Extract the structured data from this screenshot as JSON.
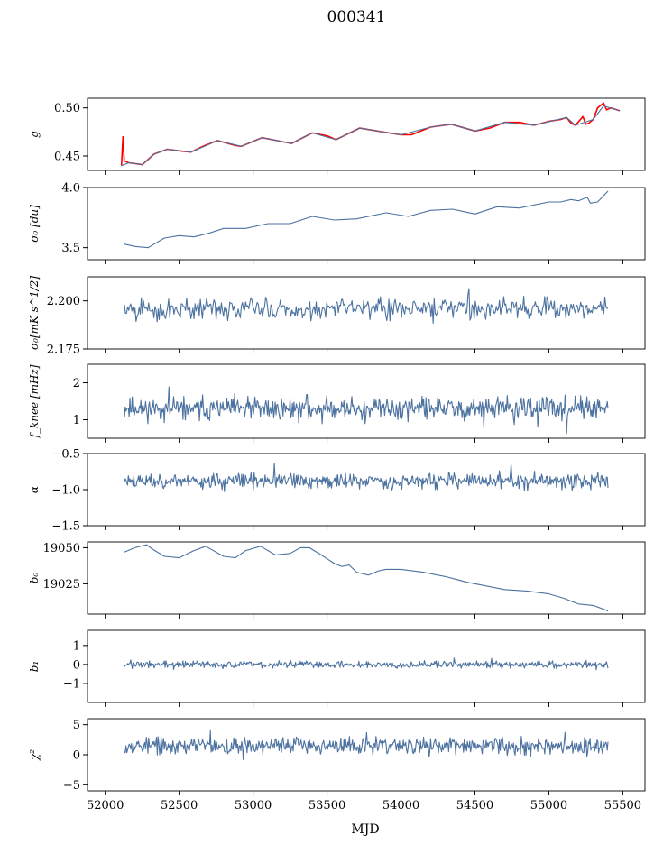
{
  "figure": {
    "title": "000341",
    "xlabel": "MJD"
  },
  "chart_data": [
    {
      "id": "g",
      "type": "line",
      "ylabel": "g",
      "xlim": [
        51880,
        55650
      ],
      "ylim": [
        0.435,
        0.51
      ],
      "yticks": [
        0.45,
        0.5
      ],
      "ytick_labels": [
        "0.45",
        "0.50"
      ],
      "series": [
        {
          "color": "#ff0000",
          "points": [
            [
              52110,
              0.44
            ],
            [
              52120,
              0.47
            ],
            [
              52128,
              0.445
            ],
            [
              52160,
              0.443
            ],
            [
              52250,
              0.441
            ],
            [
              52330,
              0.452
            ],
            [
              52420,
              0.457
            ],
            [
              52520,
              0.455
            ],
            [
              52580,
              0.454
            ],
            [
              52660,
              0.46
            ],
            [
              52760,
              0.466
            ],
            [
              52880,
              0.461
            ],
            [
              52920,
              0.46
            ],
            [
              53060,
              0.469
            ],
            [
              53160,
              0.466
            ],
            [
              53260,
              0.463
            ],
            [
              53400,
              0.474
            ],
            [
              53500,
              0.471
            ],
            [
              53560,
              0.467
            ],
            [
              53720,
              0.479
            ],
            [
              53840,
              0.476
            ],
            [
              54000,
              0.472
            ],
            [
              54070,
              0.472
            ],
            [
              54200,
              0.48
            ],
            [
              54340,
              0.483
            ],
            [
              54500,
              0.476
            ],
            [
              54600,
              0.479
            ],
            [
              54700,
              0.485
            ],
            [
              54800,
              0.485
            ],
            [
              54900,
              0.482
            ],
            [
              55000,
              0.486
            ],
            [
              55080,
              0.488
            ],
            [
              55120,
              0.49
            ],
            [
              55150,
              0.484
            ],
            [
              55180,
              0.482
            ],
            [
              55230,
              0.491
            ],
            [
              55250,
              0.483
            ],
            [
              55270,
              0.484
            ],
            [
              55300,
              0.488
            ],
            [
              55330,
              0.5
            ],
            [
              55370,
              0.505
            ],
            [
              55390,
              0.498
            ],
            [
              55420,
              0.5
            ],
            [
              55480,
              0.497
            ]
          ]
        },
        {
          "color": "#4c72a0",
          "points": [
            [
              52110,
              0.44
            ],
            [
              52160,
              0.443
            ],
            [
              52250,
              0.441
            ],
            [
              52330,
              0.452
            ],
            [
              52420,
              0.457
            ],
            [
              52580,
              0.454
            ],
            [
              52760,
              0.466
            ],
            [
              52920,
              0.46
            ],
            [
              53060,
              0.469
            ],
            [
              53260,
              0.463
            ],
            [
              53400,
              0.474
            ],
            [
              53560,
              0.467
            ],
            [
              53720,
              0.479
            ],
            [
              54000,
              0.472
            ],
            [
              54200,
              0.48
            ],
            [
              54340,
              0.483
            ],
            [
              54500,
              0.476
            ],
            [
              54700,
              0.485
            ],
            [
              54900,
              0.482
            ],
            [
              55120,
              0.49
            ],
            [
              55180,
              0.482
            ],
            [
              55300,
              0.488
            ],
            [
              55370,
              0.502
            ],
            [
              55480,
              0.497
            ]
          ]
        }
      ]
    },
    {
      "id": "sigma0",
      "type": "line",
      "ylabel": "σ₀ [du]",
      "xlim": [
        51880,
        55650
      ],
      "ylim": [
        3.4,
        4.0
      ],
      "yticks": [
        3.5,
        4.0
      ],
      "ytick_labels": [
        "3.5",
        "4.0"
      ],
      "series": [
        {
          "color": "#4c72a0",
          "points": [
            [
              52130,
              3.53
            ],
            [
              52200,
              3.51
            ],
            [
              52290,
              3.5
            ],
            [
              52400,
              3.58
            ],
            [
              52500,
              3.6
            ],
            [
              52600,
              3.59
            ],
            [
              52700,
              3.62
            ],
            [
              52800,
              3.66
            ],
            [
              52950,
              3.66
            ],
            [
              53100,
              3.7
            ],
            [
              53250,
              3.7
            ],
            [
              53400,
              3.76
            ],
            [
              53550,
              3.73
            ],
            [
              53700,
              3.74
            ],
            [
              53900,
              3.79
            ],
            [
              54050,
              3.76
            ],
            [
              54200,
              3.81
            ],
            [
              54350,
              3.82
            ],
            [
              54500,
              3.78
            ],
            [
              54650,
              3.84
            ],
            [
              54800,
              3.83
            ],
            [
              55000,
              3.88
            ],
            [
              55080,
              3.88
            ],
            [
              55150,
              3.9
            ],
            [
              55200,
              3.89
            ],
            [
              55260,
              3.92
            ],
            [
              55280,
              3.87
            ],
            [
              55330,
              3.88
            ],
            [
              55400,
              3.97
            ]
          ]
        }
      ]
    },
    {
      "id": "sigma0w",
      "type": "line",
      "ylabel": "σ₀[mK s^1/2]",
      "xlim": [
        51880,
        55650
      ],
      "ylim": [
        2.175,
        2.2125
      ],
      "yticks": [
        2.175,
        2.2
      ],
      "ytick_labels": [
        "2.175",
        "2.200"
      ],
      "noise": {
        "seed": 5,
        "n": 460,
        "x0": 52130,
        "x1": 55400,
        "base": 2.196,
        "amp": 0.004,
        "color": "#4c72a0"
      }
    },
    {
      "id": "fknee",
      "type": "line",
      "ylabel": "f_knee [mHz]",
      "xlim": [
        51880,
        55650
      ],
      "ylim": [
        0.5,
        2.5
      ],
      "yticks": [
        1,
        2
      ],
      "ytick_labels": [
        "1",
        "2"
      ],
      "noise": {
        "seed": 11,
        "n": 620,
        "x0": 52130,
        "x1": 55400,
        "base": 1.3,
        "amp": 0.2,
        "color": "#4c72a0"
      }
    },
    {
      "id": "alpha",
      "type": "line",
      "ylabel": "α",
      "xlim": [
        51880,
        55650
      ],
      "ylim": [
        -1.5,
        -0.5
      ],
      "yticks": [
        -1.5,
        -1.0,
        -0.5
      ],
      "ytick_labels": [
        "−1.5",
        "−1.0",
        "−0.5"
      ],
      "noise": {
        "seed": 23,
        "n": 620,
        "x0": 52130,
        "x1": 55400,
        "base": -0.88,
        "amp": 0.07,
        "color": "#4c72a0"
      }
    },
    {
      "id": "b0",
      "type": "line",
      "ylabel": "b₀",
      "xlim": [
        51880,
        55650
      ],
      "ylim": [
        19004,
        19054
      ],
      "yticks": [
        19025,
        19050
      ],
      "ytick_labels": [
        "19025",
        "19050"
      ],
      "series": [
        {
          "color": "#4c72a0",
          "points": [
            [
              52130,
              19047
            ],
            [
              52200,
              19050
            ],
            [
              52280,
              19052
            ],
            [
              52320,
              19049
            ],
            [
              52400,
              19044
            ],
            [
              52500,
              19043
            ],
            [
              52600,
              19048
            ],
            [
              52680,
              19051
            ],
            [
              52800,
              19044
            ],
            [
              52880,
              19043
            ],
            [
              52950,
              19048
            ],
            [
              53050,
              19051
            ],
            [
              53150,
              19045
            ],
            [
              53250,
              19046
            ],
            [
              53320,
              19050
            ],
            [
              53380,
              19050
            ],
            [
              53460,
              19045
            ],
            [
              53550,
              19039
            ],
            [
              53600,
              19037
            ],
            [
              53650,
              19038
            ],
            [
              53700,
              19033
            ],
            [
              53780,
              19031
            ],
            [
              53850,
              19034
            ],
            [
              53900,
              19035
            ],
            [
              54000,
              19035
            ],
            [
              54150,
              19033
            ],
            [
              54300,
              19030
            ],
            [
              54450,
              19026
            ],
            [
              54600,
              19023
            ],
            [
              54700,
              19021
            ],
            [
              54850,
              19020
            ],
            [
              55000,
              19018
            ],
            [
              55100,
              19015
            ],
            [
              55200,
              19011
            ],
            [
              55300,
              19010
            ],
            [
              55380,
              19007
            ],
            [
              55400,
              19006
            ]
          ]
        }
      ]
    },
    {
      "id": "b1",
      "type": "line",
      "ylabel": "b₁",
      "xlim": [
        51880,
        55650
      ],
      "ylim": [
        -2.0,
        1.8
      ],
      "yticks": [
        -1,
        0,
        1
      ],
      "ytick_labels": [
        "−1",
        "0",
        "1"
      ],
      "noise": {
        "seed": 37,
        "n": 620,
        "x0": 52130,
        "x1": 55400,
        "base": 0.0,
        "amp": 0.12,
        "color": "#4c72a0"
      }
    },
    {
      "id": "chi2",
      "type": "line",
      "ylabel": "χ²",
      "xlim": [
        51880,
        55650
      ],
      "ylim": [
        -6,
        6
      ],
      "yticks": [
        -5,
        0,
        5
      ],
      "ytick_labels": [
        "−5",
        "0",
        "5"
      ],
      "xticks": [
        52000,
        52500,
        53000,
        53500,
        54000,
        54500,
        55000,
        55500
      ],
      "xtick_labels": [
        "52000",
        "52500",
        "53000",
        "53500",
        "54000",
        "54500",
        "55000",
        "55500"
      ],
      "noise": {
        "seed": 53,
        "n": 620,
        "x0": 52130,
        "x1": 55400,
        "base": 1.5,
        "amp": 0.9,
        "color": "#4c72a0"
      }
    }
  ]
}
